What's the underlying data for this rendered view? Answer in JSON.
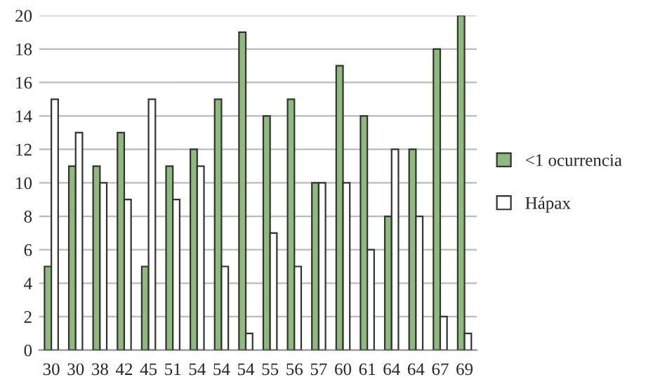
{
  "chart_data": {
    "type": "bar",
    "categories": [
      "30",
      "30",
      "38",
      "42",
      "45",
      "51",
      "54",
      "54",
      "54",
      "55",
      "56",
      "57",
      "60",
      "61",
      "64",
      "64",
      "67",
      "69"
    ],
    "series": [
      {
        "name": "<1 ocurrencia",
        "color": "#8fba7e",
        "values": [
          5,
          11,
          11,
          13,
          5,
          11,
          12,
          15,
          19,
          14,
          15,
          10,
          17,
          14,
          8,
          12,
          18,
          20
        ]
      },
      {
        "name": "Hápax",
        "color": "#ffffff",
        "values": [
          15,
          13,
          10,
          9,
          15,
          9,
          11,
          5,
          1,
          7,
          5,
          10,
          10,
          6,
          12,
          8,
          2,
          1
        ]
      }
    ],
    "ylim": [
      0,
      20
    ],
    "yticks": [
      0,
      2,
      4,
      6,
      8,
      10,
      12,
      14,
      16,
      18,
      20
    ],
    "grid": "y",
    "legend": "right"
  }
}
